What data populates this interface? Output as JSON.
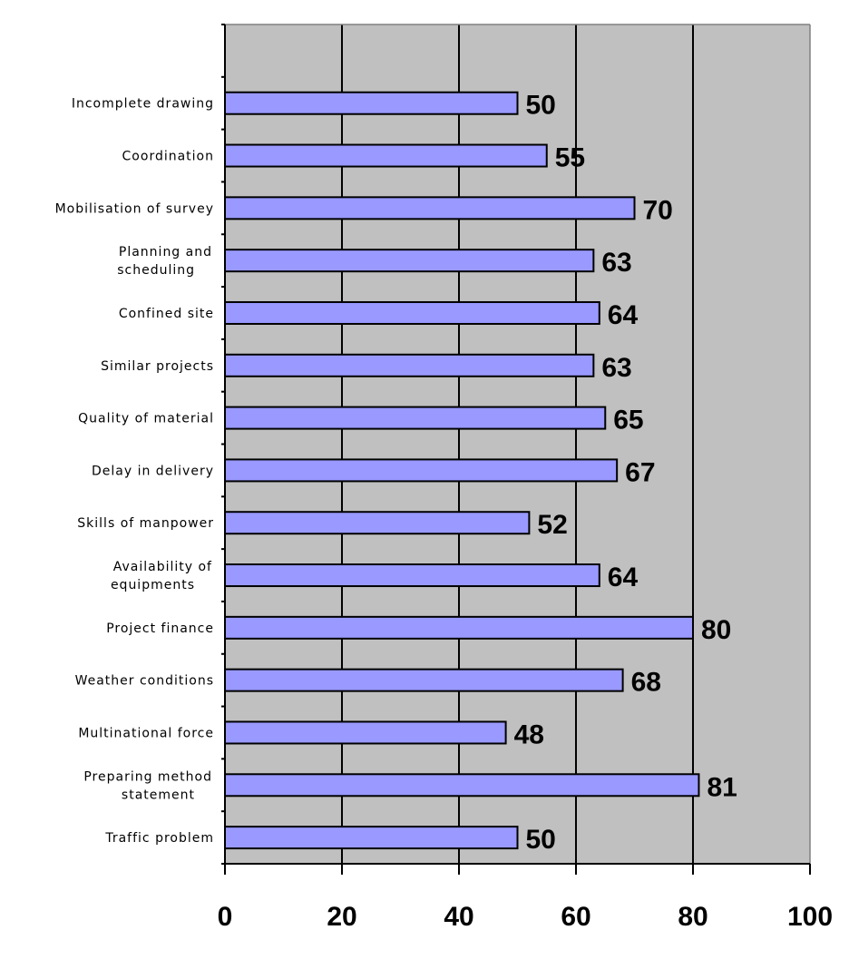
{
  "chart_data": {
    "type": "bar",
    "orientation": "horizontal",
    "categories": [
      "Incomplete drawing",
      "Coordination",
      "Mobilisation of survey",
      "Planning and scheduling",
      "Confined site",
      "Similar projects",
      "Quality of material",
      "Delay in delivery",
      "Skills of manpower",
      "Availability of equipments",
      "Project finance",
      "Weather conditions",
      "Multinational force",
      "Preparing method statement",
      "Traffic problem"
    ],
    "values": [
      50,
      55,
      70,
      63,
      64,
      63,
      65,
      67,
      52,
      64,
      80,
      68,
      48,
      81,
      50
    ],
    "xlim": [
      0,
      100
    ],
    "xticks": [
      0,
      20,
      40,
      60,
      80,
      100
    ],
    "grid": "vertical major gridlines",
    "data_labels": true,
    "legend": "none",
    "colors": {
      "bar": "#9999FF",
      "plot_background": "#C0C0C0",
      "gridline": "#000000"
    }
  }
}
